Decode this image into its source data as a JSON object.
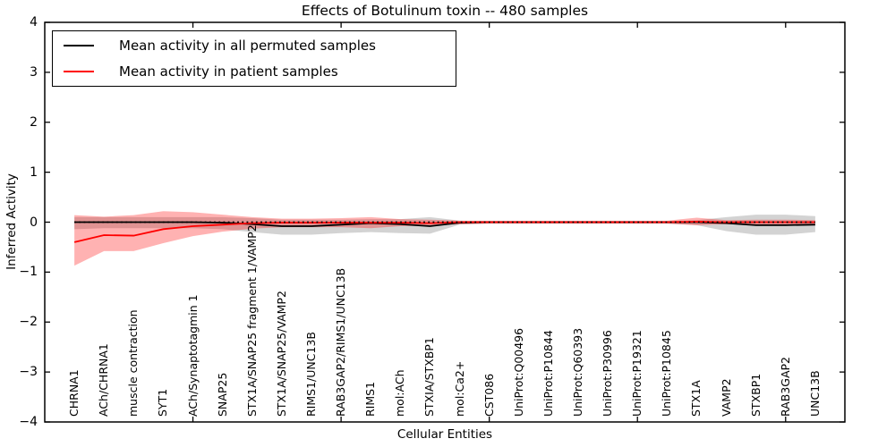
{
  "legend": {
    "items": [
      {
        "label": "Mean activity in all permuted samples",
        "color": "#000000"
      },
      {
        "label": "Mean activity in patient samples",
        "color": "#ff0000"
      }
    ]
  },
  "chart_data": {
    "type": "line",
    "title": "Effects of Botulinum toxin -- 480 samples",
    "xlabel": "Cellular Entities",
    "ylabel": "Inferred Activity",
    "ylim": [
      -4,
      4
    ],
    "yticks": [
      4,
      3,
      2,
      1,
      0,
      -1,
      -2,
      -3,
      -4
    ],
    "ytick_labels": [
      "4",
      "3",
      "2",
      "1",
      "0",
      "−1",
      "−2",
      "−3",
      "−4"
    ],
    "xtick_positions": [
      5,
      10,
      15,
      20,
      25
    ],
    "grid": false,
    "legend_position": "upper left",
    "zero_reference_line": true,
    "categories": [
      "CHRNA1",
      "ACh/CHRNA1",
      "muscle contraction",
      "SYT1",
      "ACh/Synaptotagmin 1",
      "SNAP25",
      "STX1A/SNAP25 fragment 1/VAMP2",
      "STX1A/SNAP25/VAMP2",
      "RIMS1/UNC13B",
      "RAB3GAP2/RIMS1/UNC13B",
      "RIMS1",
      "mol:ACh",
      "STXIA/STXBP1",
      "mol:Ca2+",
      "CST086",
      "UniProt:Q00496",
      "UniProt:P10844",
      "UniProt:Q60393",
      "UniProt:P30996",
      "UniProt:P19321",
      "UniProt:P10845",
      "STX1A",
      "VAMP2",
      "STXBP1",
      "RAB3GAP2",
      "UNC13B"
    ],
    "series": [
      {
        "id": "permuted",
        "name": "Mean activity in all permuted samples",
        "color": "#000000",
        "band_color": "#808080",
        "band_opacity": 0.35,
        "values": [
          0,
          0,
          0,
          0,
          0,
          -0.01,
          -0.04,
          -0.08,
          -0.08,
          -0.05,
          -0.02,
          -0.04,
          -0.08,
          -0.01,
          0,
          0,
          0,
          0,
          0,
          0,
          0,
          0,
          -0.02,
          -0.06,
          -0.06,
          -0.05
        ],
        "band_upper": [
          0.1,
          0.1,
          0.1,
          0.1,
          0.1,
          0.1,
          0.08,
          0.05,
          0.05,
          0.05,
          0.06,
          0.06,
          0.1,
          0.03,
          0.02,
          0.02,
          0.02,
          0.02,
          0.02,
          0.02,
          0.02,
          0.04,
          0.1,
          0.15,
          0.15,
          0.12
        ],
        "band_lower": [
          -0.14,
          -0.12,
          -0.12,
          -0.12,
          -0.12,
          -0.14,
          -0.2,
          -0.25,
          -0.25,
          -0.22,
          -0.2,
          -0.22,
          -0.23,
          -0.05,
          -0.03,
          -0.03,
          -0.03,
          -0.03,
          -0.03,
          -0.03,
          -0.03,
          -0.06,
          -0.18,
          -0.25,
          -0.25,
          -0.2
        ]
      },
      {
        "id": "patient",
        "name": "Mean activity in patient samples",
        "color": "#ff0000",
        "band_color": "#ff0000",
        "band_opacity": 0.3,
        "values": [
          -0.4,
          -0.26,
          -0.27,
          -0.14,
          -0.08,
          -0.05,
          -0.02,
          -0.01,
          -0.01,
          -0.01,
          -0.01,
          -0.01,
          -0.02,
          0,
          0,
          0,
          0,
          0,
          0,
          0,
          0,
          0.01,
          0,
          0,
          0,
          0
        ],
        "band_upper": [
          0.14,
          0.11,
          0.14,
          0.22,
          0.2,
          0.15,
          0.1,
          0.07,
          0.07,
          0.08,
          0.1,
          0.06,
          0.05,
          0.03,
          0.03,
          0.03,
          0.03,
          0.03,
          0.03,
          0.03,
          0.03,
          0.09,
          0.04,
          0.05,
          0.05,
          0.04
        ],
        "band_lower": [
          -0.87,
          -0.58,
          -0.58,
          -0.42,
          -0.28,
          -0.19,
          -0.13,
          -0.1,
          -0.1,
          -0.1,
          -0.12,
          -0.08,
          -0.07,
          -0.04,
          -0.03,
          -0.03,
          -0.03,
          -0.03,
          -0.03,
          -0.03,
          -0.03,
          -0.06,
          -0.04,
          -0.05,
          -0.05,
          -0.04
        ]
      }
    ]
  }
}
